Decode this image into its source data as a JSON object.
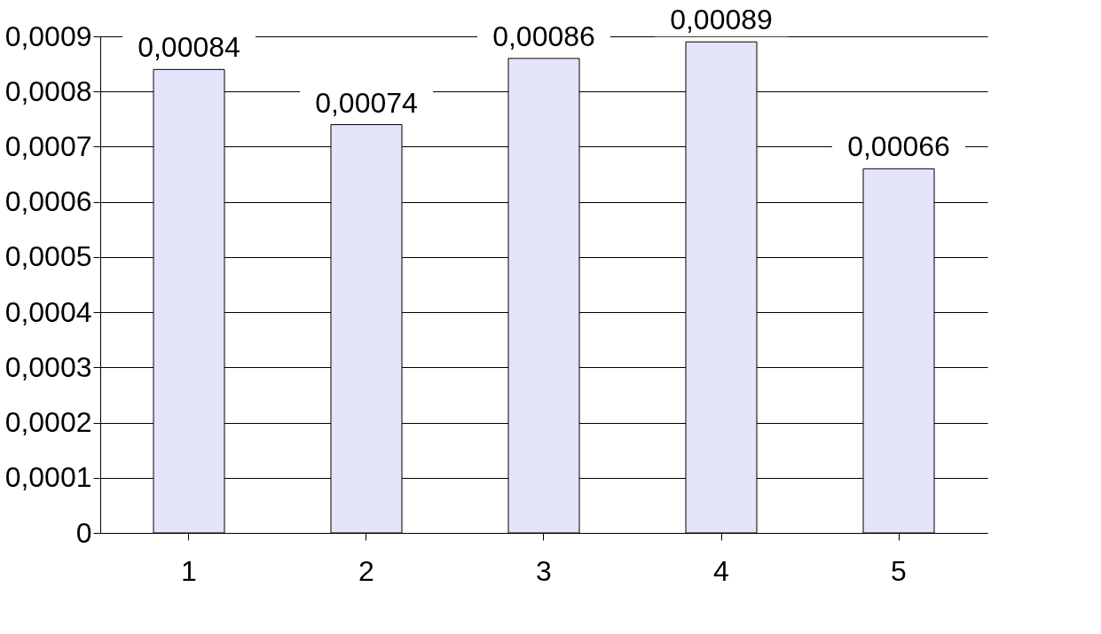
{
  "chart_data": {
    "type": "bar",
    "categories": [
      "1",
      "2",
      "3",
      "4",
      "5"
    ],
    "values": [
      0.00084,
      0.00074,
      0.00086,
      0.00089,
      0.00066
    ],
    "value_labels": [
      "0,00084",
      "0,00074",
      "0,00086",
      "0,00089",
      "0,00066"
    ],
    "color": "#e4e4fb",
    "ylim": [
      0,
      0.0009
    ],
    "yticks": [
      0,
      {
        "value": 0.0001,
        "label": "0,0001"
      },
      {
        "value": 0.0002,
        "label": "0,0002"
      },
      {
        "value": 0.0003,
        "label": "0,0003"
      },
      {
        "value": 0.0004,
        "label": "0,0004"
      },
      {
        "value": 0.0005,
        "label": "0,0005"
      },
      {
        "value": 0.0006,
        "label": "0,0006"
      },
      {
        "value": 0.0007,
        "label": "0,0007"
      },
      {
        "value": 0.0008,
        "label": "0,0008"
      },
      {
        "value": 0.0009,
        "label": "0,0009"
      }
    ],
    "grid": "y"
  }
}
